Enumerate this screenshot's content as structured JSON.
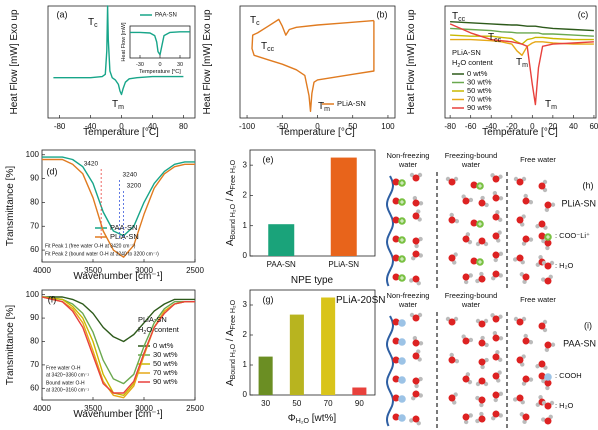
{
  "chart_data": [
    {
      "type": "line",
      "panel": "(a)",
      "xlabel": [
        "Temperature [°C]"
      ],
      "ylabel": [
        "Heat Flow [mW] Exo up"
      ],
      "xlim": [
        -95,
        95
      ],
      "xticks": [
        -80,
        -40,
        0,
        40,
        80
      ],
      "ylim": [
        0,
        10
      ],
      "x": [
        -88,
        -60,
        -40,
        -25,
        -21,
        -19,
        -18,
        -17,
        -15,
        -12,
        -8,
        -4,
        -2,
        0,
        2,
        5,
        10,
        20,
        40,
        60,
        80
      ],
      "series": [
        {
          "color": "#17a589",
          "values": [
            3.6,
            3.6,
            3.6,
            3.7,
            3.9,
            6,
            10,
            7,
            4.2,
            3.6,
            3.4,
            3.0,
            2.4,
            2.1,
            2.6,
            3.2,
            3.5,
            3.6,
            3.7,
            3.7,
            3.7
          ]
        }
      ],
      "annotations": [
        [
          "T",
          "c"
        ],
        [
          "T",
          "m"
        ]
      ]
    },
    {
      "type": "line",
      "xlabel": [
        "Temperature [°C]"
      ],
      "ylabel": [
        "Heat Flow [mW]"
      ],
      "xlim": [
        -45,
        45
      ],
      "xticks": [
        -30,
        0,
        30
      ],
      "ylim": [
        0,
        10
      ],
      "x": [
        -45,
        -30,
        -15,
        -8,
        -5,
        -3,
        0,
        3,
        6,
        15,
        30,
        45
      ],
      "series": [
        {
          "name": "PAA-SN",
          "color": "#17a589",
          "values": [
            8,
            8,
            7.8,
            7,
            5,
            2,
            1,
            4,
            7,
            8,
            8.2,
            8.2
          ]
        }
      ]
    },
    {
      "type": "line",
      "panel": "(b)",
      "xlabel": [
        "Temperature [°C]"
      ],
      "ylabel": [
        "Heat Flow [mW] Exo up"
      ],
      "xlim": [
        -110,
        110
      ],
      "xticks": [
        -100,
        -50,
        0,
        50,
        100
      ],
      "ylim": [
        0,
        10
      ],
      "series": [
        {
          "name": "PLiA-SN",
          "color": "#e07b20",
          "x": [
            80,
            40,
            0,
            -30,
            -40,
            -45,
            -50,
            -55,
            -70,
            -85,
            -92,
            -93,
            -90,
            -70,
            -50,
            -30,
            -18,
            -12,
            -10,
            -8,
            -5,
            0,
            20,
            50,
            80,
            80
          ],
          "values": [
            8.7,
            8.5,
            8.3,
            8.1,
            7.9,
            7.4,
            8.2,
            8.8,
            8.2,
            7.6,
            7.4,
            6.2,
            5.6,
            5.2,
            4.8,
            4.3,
            3.8,
            2,
            0.6,
            2.2,
            3.2,
            3.4,
            3.6,
            3.9,
            4.2,
            8.7
          ]
        }
      ],
      "annotations": [
        [
          "T",
          "c"
        ],
        [
          "T",
          "cc"
        ],
        [
          "T",
          "m"
        ]
      ]
    },
    {
      "type": "line",
      "panel": "(c)",
      "xlabel": [
        "Temperature [°C]"
      ],
      "ylabel": [
        "Heat Flow [mW] Exo up"
      ],
      "xlim": [
        -85,
        62
      ],
      "xticks": [
        -80,
        -60,
        -40,
        -20,
        0,
        20,
        40,
        60
      ],
      "ylim": [
        0,
        10
      ],
      "legend_title": [
        [
          "PLiA-SN"
        ],
        [
          "H",
          "2",
          "O content"
        ]
      ],
      "x": [
        -80,
        -60,
        -40,
        -30,
        -20,
        -15,
        -10,
        -5,
        0,
        3,
        6,
        10,
        20,
        40,
        60
      ],
      "series": [
        {
          "name": "0 wt%",
          "color": "#2d5a1b",
          "values": [
            8.6,
            8.5,
            8.4,
            8.35,
            8.3,
            8.3,
            8.25,
            8.2,
            8.2,
            8.2,
            8.15,
            8.1,
            8.0,
            7.9,
            7.8
          ]
        },
        {
          "name": "30 wt%",
          "color": "#6aa84f",
          "values": [
            8.0,
            7.9,
            7.8,
            7.7,
            7.65,
            7.6,
            7.6,
            7.6,
            7.6,
            7.6,
            7.6,
            7.5,
            7.5,
            7.4,
            7.3
          ]
        },
        {
          "name": "50 wt%",
          "color": "#c9b800",
          "values": [
            7.4,
            7.3,
            7.3,
            7.2,
            7.1,
            6.8,
            6.6,
            7.0,
            7.1,
            7.2,
            7.2,
            7.2,
            7.1,
            7.0,
            7.0
          ]
        },
        {
          "name": "70 wt%",
          "color": "#e6a817",
          "values": [
            7.0,
            7.0,
            6.9,
            6.8,
            6.6,
            6.0,
            5.6,
            6.4,
            6.7,
            6.8,
            6.8,
            6.8,
            6.7,
            6.6,
            6.6
          ]
        },
        {
          "name": "90 wt%",
          "color": "#e8413c",
          "values": [
            8.4,
            7.6,
            7.0,
            6.9,
            6.8,
            6.7,
            6.6,
            6.4,
            3.0,
            1.2,
            4.5,
            6.4,
            6.6,
            6.7,
            6.8
          ]
        }
      ],
      "annotations": [
        [
          "T",
          "cc"
        ],
        [
          "T",
          "cc"
        ],
        [
          "T",
          "m"
        ],
        [
          "T",
          "m"
        ]
      ]
    },
    {
      "type": "line",
      "panel": "(d)",
      "xlabel": [
        "Wavenumber [cm⁻¹]"
      ],
      "ylabel": [
        "Transmittance [%]"
      ],
      "xlim": [
        4000,
        2500
      ],
      "xticks": [
        4000,
        3500,
        3000,
        2500
      ],
      "ylim": [
        55,
        102
      ],
      "yticks": [
        60,
        70,
        80,
        90,
        100
      ],
      "x": [
        4000,
        3800,
        3700,
        3600,
        3500,
        3400,
        3300,
        3200,
        3100,
        3000,
        2900,
        2800,
        2700,
        2600,
        2500
      ],
      "series": [
        {
          "name": "PAA-SN",
          "color": "#17a589",
          "values": [
            99,
            99,
            98,
            95,
            88,
            76,
            68,
            66,
            70,
            80,
            88,
            93,
            96,
            97,
            97
          ]
        },
        {
          "name": "PLiA-SN",
          "color": "#e07b20",
          "values": [
            98,
            98,
            96,
            92,
            82,
            68,
            60,
            57,
            62,
            75,
            86,
            92,
            95,
            96,
            96
          ]
        }
      ],
      "peaks": [
        3420,
        3240,
        3200
      ],
      "notes": [
        "Fit Peak 1 (free water O-H at 3420 cm⁻¹)",
        "Fit Peak 2 (bound water O-H at 3240 to 3200 cm⁻¹)"
      ]
    },
    {
      "type": "bar",
      "panel": "(e)",
      "xlabel": [
        "NPE type"
      ],
      "ylabel": [
        "A",
        "Bound H₂O",
        " / A",
        "Free H₂O"
      ],
      "categories": [
        "PAA-SN",
        "PLiA-SN"
      ],
      "values": [
        1.05,
        3.25
      ],
      "colors": [
        "#1aa37a",
        "#e8641b"
      ],
      "ylim": [
        0,
        3.5
      ],
      "yticks": [
        0,
        1,
        2,
        3
      ]
    },
    {
      "type": "line",
      "panel": "(f)",
      "xlabel": [
        "Wavenumber [cm⁻¹]"
      ],
      "ylabel": [
        "Transmittance [%]"
      ],
      "xlim": [
        4000,
        2500
      ],
      "xticks": [
        4000,
        3500,
        3000,
        2500
      ],
      "ylim": [
        55,
        102
      ],
      "yticks": [
        60,
        70,
        80,
        90,
        100
      ],
      "legend_title": [
        [
          "PLiA-SN"
        ],
        [
          "H",
          "2",
          "O content"
        ]
      ],
      "x": [
        4000,
        3800,
        3700,
        3600,
        3500,
        3400,
        3300,
        3200,
        3100,
        3000,
        2900,
        2800,
        2700,
        2600,
        2500
      ],
      "series": [
        {
          "name": "0 wt%",
          "color": "#2d5a1b",
          "values": [
            99,
            99,
            98,
            96,
            92,
            86,
            82,
            80,
            83,
            88,
            93,
            96,
            98,
            98,
            98
          ]
        },
        {
          "name": "30 wt%",
          "color": "#6aa84f",
          "values": [
            99,
            98,
            96,
            92,
            84,
            72,
            64,
            62,
            66,
            78,
            88,
            94,
            97,
            97,
            97
          ]
        },
        {
          "name": "50 wt%",
          "color": "#c9b800",
          "values": [
            99,
            98,
            95,
            90,
            80,
            66,
            58,
            57,
            62,
            75,
            86,
            93,
            96,
            97,
            97
          ]
        },
        {
          "name": "70 wt%",
          "color": "#e6a817",
          "values": [
            99,
            97,
            94,
            88,
            76,
            63,
            57,
            56,
            61,
            74,
            86,
            93,
            96,
            97,
            97
          ]
        },
        {
          "name": "90 wt%",
          "color": "#e8413c",
          "values": [
            99,
            97,
            93,
            86,
            74,
            62,
            58,
            58,
            63,
            75,
            86,
            92,
            96,
            97,
            97
          ]
        }
      ],
      "notes": [
        "Free water O-H",
        "at 3420~3360 cm⁻¹",
        "Bound water O-H",
        "at 3200~3160 cm⁻¹"
      ]
    },
    {
      "type": "bar",
      "panel": "(g)",
      "xlabel": [
        "Φ",
        "H₂O",
        " [wt%]"
      ],
      "ylabel": [
        "A",
        "Bound H₂O",
        " / A",
        "Free H₂O"
      ],
      "categories": [
        "30",
        "50",
        "70",
        "90"
      ],
      "values": [
        1.28,
        2.68,
        3.25,
        0.25
      ],
      "colors": [
        "#6b8e23",
        "#b8b41f",
        "#d9c41a",
        "#e8413c"
      ],
      "ylim": [
        0,
        3.5
      ],
      "yticks": [
        0,
        1,
        2,
        3
      ],
      "annotations": [
        [
          "PLiA-20SN"
        ]
      ]
    }
  ],
  "schematics": [
    {
      "panel": "(h)",
      "title": "PLiA-SN",
      "zones": [
        [
          "Non-freezing",
          "water"
        ],
        [
          "Freezing-bound",
          "water"
        ],
        [
          "Free water"
        ]
      ],
      "legend": [
        ": COO⁻Li⁺",
        ": H₂O"
      ]
    },
    {
      "panel": "(i)",
      "title": "PAA-SN",
      "zones": [
        [
          "Non-freezing",
          "water"
        ],
        [
          "Freezing-bound",
          "water"
        ],
        [
          "Free water"
        ]
      ],
      "legend": [
        ": COOH",
        ": H₂O"
      ]
    }
  ]
}
